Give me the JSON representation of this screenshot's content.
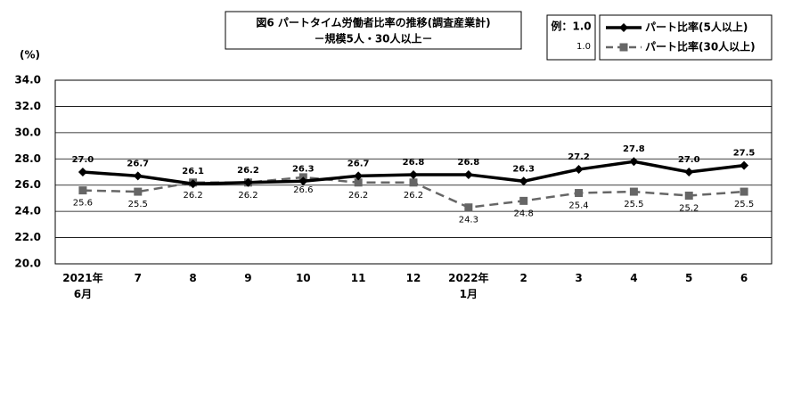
{
  "chart_data": {
    "type": "line",
    "title": "図6 パートタイム労働者比率の推移(調査産業計)",
    "subtitle": "－規模5人・30人以上－",
    "y_unit": "(%)",
    "label_example": [
      "例：1.0",
      "1.0"
    ],
    "categories": [
      "2021年\n6月",
      "7",
      "8",
      "9",
      "10",
      "11",
      "12",
      "2022年\n1月",
      "2",
      "3",
      "4",
      "5",
      "6"
    ],
    "series": [
      {
        "name": "パート比率(5人以上)",
        "color": "#000000",
        "marker": "diamond",
        "dash": false,
        "values": [
          27.0,
          26.7,
          26.1,
          26.2,
          26.3,
          26.7,
          26.8,
          26.8,
          26.3,
          27.2,
          27.8,
          27.0,
          27.5
        ],
        "value_labels": [
          "27.0",
          "26.7",
          "26.1",
          "26.2",
          "26.3",
          "26.7",
          "26.8",
          "26.8",
          "26.3",
          "27.2",
          "27.8",
          "27.0",
          "27.5"
        ]
      },
      {
        "name": "パート比率(30人以上)",
        "color": "#666666",
        "marker": "square",
        "dash": true,
        "values": [
          25.6,
          25.5,
          26.2,
          26.2,
          26.6,
          26.2,
          26.2,
          24.3,
          24.8,
          25.4,
          25.5,
          25.2,
          25.5
        ],
        "value_labels": [
          "25.6",
          "25.5",
          "26.2",
          "26.2",
          "26.6",
          "26.2",
          "26.2",
          "24.3",
          "24.8",
          "25.4",
          "25.5",
          "25.2",
          "25.5"
        ]
      }
    ],
    "ylim": [
      20,
      34
    ],
    "yticks": [
      {
        "value": 20,
        "label": "20.0"
      },
      {
        "value": 22,
        "label": "22.0"
      },
      {
        "value": 24,
        "label": "24.0"
      },
      {
        "value": 26,
        "label": "26.0"
      },
      {
        "value": 28,
        "label": "28.0"
      },
      {
        "value": 30,
        "label": "30.0"
      },
      {
        "value": 32,
        "label": "32.0"
      },
      {
        "value": 34,
        "label": "34.0"
      }
    ],
    "grid": true
  }
}
